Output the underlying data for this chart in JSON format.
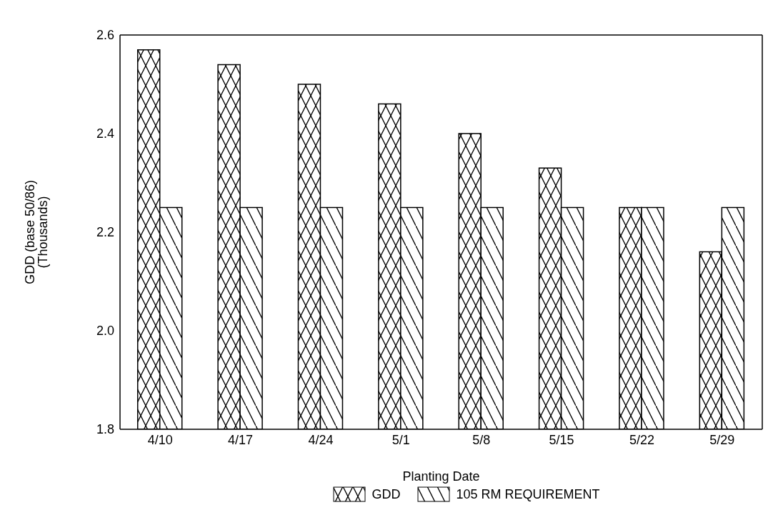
{
  "chart_data": {
    "type": "bar",
    "xlabel": "Planting Date",
    "ylabel": "GDD (base 50/86)\n(Thousands)",
    "categories": [
      "4/10",
      "4/17",
      "4/24",
      "5/1",
      "5/8",
      "5/15",
      "5/22",
      "5/29"
    ],
    "series": [
      {
        "name": "GDD",
        "color": "#000000",
        "values": [
          2.57,
          2.54,
          2.5,
          2.46,
          2.4,
          2.33,
          2.25,
          2.16
        ]
      },
      {
        "name": "105 RM REQUIREMENT",
        "color": "#000000",
        "values": [
          2.25,
          2.25,
          2.25,
          2.25,
          2.25,
          2.25,
          2.25,
          2.25
        ]
      }
    ],
    "ylim": [
      1.8,
      2.6
    ],
    "yticks": [
      {
        "value": 1.8,
        "label": "1.8"
      },
      {
        "value": 2.0,
        "label": "2.0"
      },
      {
        "value": 2.2,
        "label": "2.2"
      },
      {
        "value": 2.4,
        "label": "2.4"
      },
      {
        "value": 2.6,
        "label": "2.6"
      }
    ],
    "grid": false,
    "legend": "bottom"
  }
}
